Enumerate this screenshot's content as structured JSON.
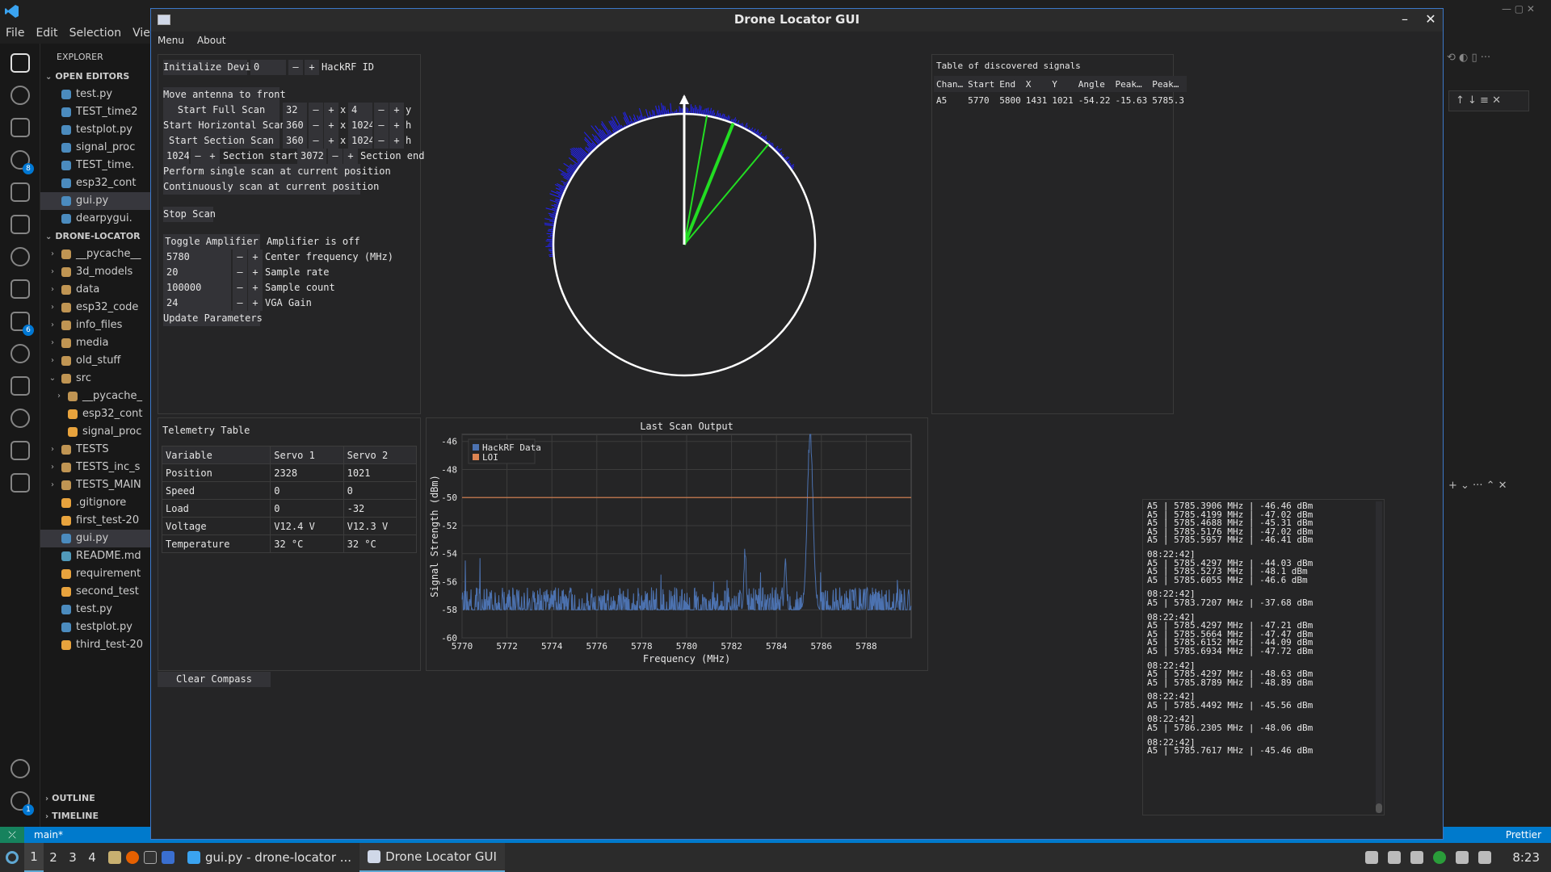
{
  "vscode": {
    "menu": [
      "File",
      "Edit",
      "Selection",
      "View"
    ],
    "explorer_title": "EXPLORER",
    "open_editors_label": "OPEN EDITORS",
    "open_editors": [
      "test.py",
      "TEST_time2",
      "testplot.py",
      "signal_proc",
      "TEST_time.",
      "esp32_cont",
      "gui.py",
      "dearpygui."
    ],
    "project_label": "DRONE-LOCATOR",
    "tree": [
      "__pycache__",
      "3d_models",
      "data",
      "esp32_code",
      "info_files",
      "media",
      "old_stuff",
      "src",
      "__pycache_",
      "esp32_cont",
      "signal_proc",
      "TESTS",
      "TESTS_inc_s",
      "TESTS_MAIN",
      ".gitignore",
      "first_test-20",
      "gui.py",
      "README.md",
      "requirement",
      "second_test",
      "test.py",
      "testplot.py",
      "third_test-20"
    ],
    "outline_label": "OUTLINE",
    "timeline_label": "TIMELINE",
    "status_branch": "main*",
    "status_prettier": "Prettier",
    "badges": {
      "source_control": "8",
      "extensions": "6",
      "settings": "1"
    }
  },
  "taskbar": {
    "workspaces": [
      "1",
      "2",
      "3",
      "4"
    ],
    "tasks": [
      "gui.py - drone-locator ...",
      "Drone Locator GUI"
    ],
    "clock": "8:23"
  },
  "window": {
    "title": "Drone Locator GUI",
    "menu": [
      "Menu",
      "About"
    ],
    "minimize": "–",
    "close": "✕"
  },
  "controls": {
    "init_button": "Initialize Device",
    "hackrf_id_value": "0",
    "hackrf_id_label": "HackRF ID",
    "move_antenna": "Move antenna to front",
    "full_scan": "Start Full Scan",
    "full_x": "32",
    "full_y": "4",
    "full_y_label": "y",
    "horiz_scan": "Start Horizontal Scan",
    "horiz_x": "360",
    "horiz_h": "1024",
    "h_label": "h",
    "section_scan": "Start Section Scan",
    "section_x": "360",
    "section_h": "1024",
    "x_label": "x",
    "section_start_value": "1024",
    "section_start_label": "Section start",
    "section_end_value": "3072",
    "section_end_label": "Section end",
    "single_scan": "Perform single scan at current position",
    "continuous_scan": "Continuously scan at current position",
    "stop_scan": "Stop Scan",
    "toggle_amp": "Toggle Amplifier",
    "amp_status": "Amplifier is off",
    "center_freq_value": "5780",
    "center_freq_label": "Center frequency (MHz)",
    "sample_rate_value": "20",
    "sample_rate_label": "Sample rate",
    "sample_count_value": "100000",
    "sample_count_label": "Sample count",
    "vga_gain_value": "24",
    "vga_gain_label": "VGA Gain",
    "update_params": "Update Parameters",
    "minus": "–",
    "plus": "+"
  },
  "telemetry": {
    "title": "Telemetry Table",
    "headers": [
      "Variable",
      "Servo 1",
      "Servo 2"
    ],
    "rows": [
      [
        "Position",
        "2328",
        "1021"
      ],
      [
        "Speed",
        "0",
        "0"
      ],
      [
        "Load",
        "0",
        "-32"
      ],
      [
        "Voltage",
        "V12.4 V",
        "V12.3 V"
      ],
      [
        "Temperature",
        "32 °C",
        "32 °C"
      ]
    ],
    "clear_compass": "Clear Compass"
  },
  "signals": {
    "title": "Table of discovered signals",
    "headers": [
      "Chan…",
      "Start",
      "End",
      "X",
      "Y",
      "Angle",
      "Peak…",
      "Peak…"
    ],
    "rows": [
      [
        "A5",
        "5770",
        "5800",
        "1431",
        "1021",
        "-54.22",
        "-15.63",
        "5785.3"
      ]
    ]
  },
  "log": [
    "A5 | 5785.3906 MHz | -46.46 dBm",
    "A5 | 5785.4199 MHz | -47.02 dBm",
    "A5 | 5785.4688 MHz | -45.31 dBm",
    "A5 | 5785.5176 MHz | -47.02 dBm",
    "A5 | 5785.5957 MHz | -46.41 dBm",
    "",
    "08:22:42]",
    "A5 | 5785.4297 MHz | -44.03 dBm",
    "A5 | 5785.5273 MHz | -48.1 dBm",
    "A5 | 5785.6055 MHz | -46.6 dBm",
    "",
    "08:22:42]",
    "A5 | 5783.7207 MHz | -37.68 dBm",
    "",
    "08:22:42]",
    "A5 | 5785.4297 MHz | -47.21 dBm",
    "A5 | 5785.5664 MHz | -47.47 dBm",
    "A5 | 5785.6152 MHz | -44.09 dBm",
    "A5 | 5785.6934 MHz | -47.72 dBm",
    "",
    "08:22:42]",
    "A5 | 5785.4297 MHz | -48.63 dBm",
    "A5 | 5785.8789 MHz | -48.89 dBm",
    "",
    "08:22:42]",
    "A5 | 5785.4492 MHz | -45.56 dBm",
    "",
    "08:22:42]",
    "A5 | 5786.2305 MHz | -48.06 dBm",
    "",
    "08:22:42]",
    "A5 | 5785.7617 MHz | -45.46 dBm"
  ],
  "compass": {
    "colors": {
      "circle": "#ffffff",
      "arrow": "#ffffff",
      "rays": "#22dd22",
      "noise": "#2222ff"
    },
    "ray_angles_deg": [
      10,
      22,
      40
    ],
    "noise_arc_deg": [
      -95,
      55
    ]
  },
  "chart_data": {
    "type": "line",
    "title": "Last Scan Output",
    "xlabel": "Frequency (MHz)",
    "ylabel": "Signal Strength (dBm)",
    "xlim": [
      5770,
      5790
    ],
    "ylim": [
      -60,
      -45.5
    ],
    "xticks": [
      5770,
      5772,
      5774,
      5776,
      5778,
      5780,
      5782,
      5784,
      5786,
      5788
    ],
    "yticks": [
      -46,
      -48,
      -50,
      -52,
      -54,
      -56,
      -58,
      -60
    ],
    "legend": {
      "placement": "top-left"
    },
    "series": [
      {
        "name": "HackRF Data",
        "color": "#4c72b0",
        "noise_floor": -58,
        "noise_spread": 1.6,
        "peaks": [
          {
            "x": 5782.6,
            "y": -53.7
          },
          {
            "x": 5784.4,
            "y": -54.7
          },
          {
            "x": 5785.5,
            "y": -45.5
          }
        ]
      },
      {
        "name": "LOI",
        "color": "#dd8452",
        "values": [
          -50,
          -50
        ]
      }
    ],
    "grid": true
  }
}
